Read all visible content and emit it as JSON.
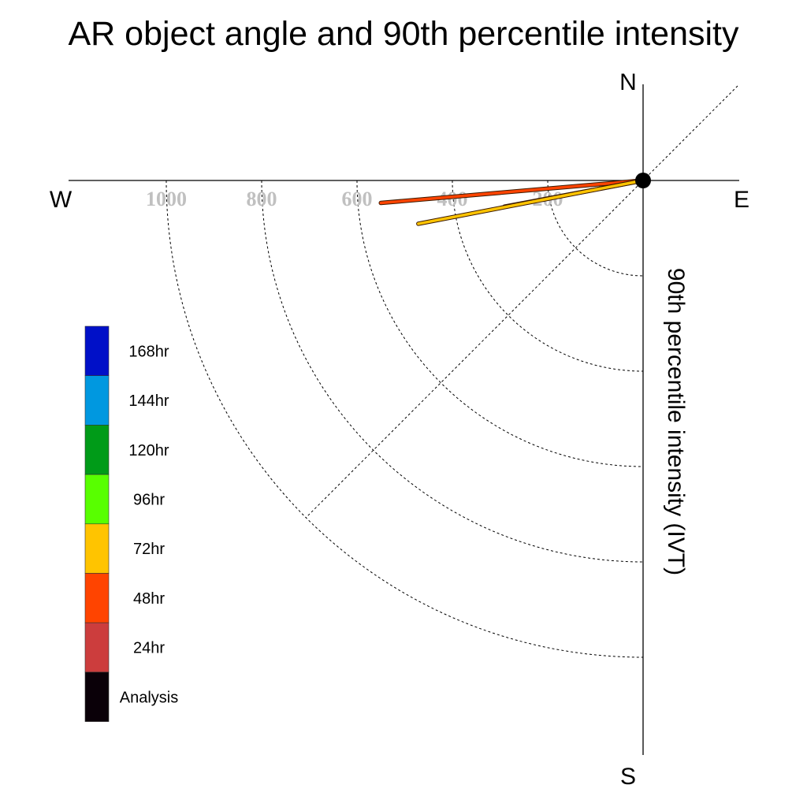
{
  "chart_data": {
    "type": "polar-line",
    "title": "AR object angle and 90th percentile intensity",
    "radial_label": "90th percentile intensity (IVT)",
    "directions": {
      "north": "N",
      "south": "S",
      "east": "E",
      "west": "W"
    },
    "radial_ticks": [
      200,
      400,
      600,
      800,
      1000
    ],
    "radial_tick_labels": [
      "200",
      "400",
      "600",
      "800",
      "1000"
    ],
    "radial_max": 1200,
    "grid": true,
    "origin_marker": "Analysis",
    "series": [
      {
        "name": "48hr",
        "color": "#ff4400",
        "angle_deg_from_west": 4.9,
        "intensity": 552
      },
      {
        "name": "72hr",
        "color": "#ffc400",
        "angle_deg_from_west": 10.7,
        "intensity": 296
      },
      {
        "name": "72hr",
        "color": "#ffc400",
        "angle_deg_from_west": 10.9,
        "intensity": 480
      }
    ],
    "legend": {
      "placement": "left",
      "entries": [
        {
          "label": "168hr",
          "color": "#0010c8"
        },
        {
          "label": "144hr",
          "color": "#0098e0"
        },
        {
          "label": "120hr",
          "color": "#009b18"
        },
        {
          "label": "96hr",
          "color": "#58ff00"
        },
        {
          "label": "72hr",
          "color": "#ffc400"
        },
        {
          "label": "48hr",
          "color": "#ff4400"
        },
        {
          "label": "24hr",
          "color": "#cc3d3d"
        },
        {
          "label": "Analysis",
          "color": "#0a0008"
        }
      ]
    }
  }
}
